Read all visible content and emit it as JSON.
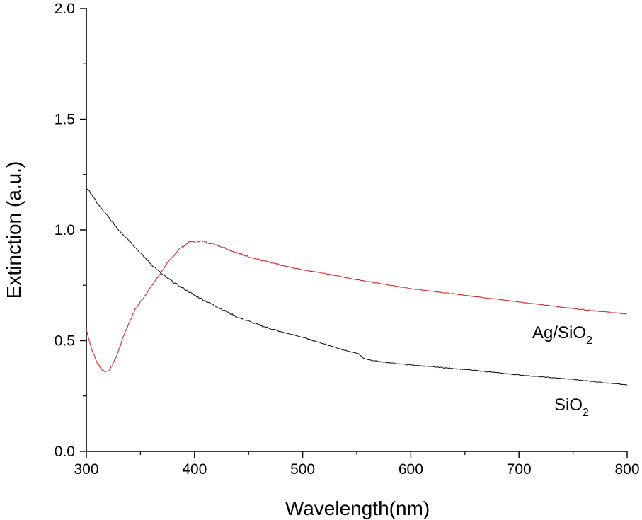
{
  "chart_data": {
    "type": "line",
    "xlabel": "Wavelength(nm)",
    "ylabel": "Extinction (a.u.)",
    "xlim": [
      300,
      800
    ],
    "ylim": [
      0.0,
      2.0
    ],
    "x_ticks": [
      300,
      400,
      500,
      600,
      700,
      800
    ],
    "x_tick_labels": [
      "300",
      "400",
      "500",
      "600",
      "700",
      "800"
    ],
    "y_ticks": [
      0.0,
      0.5,
      1.0,
      1.5,
      2.0
    ],
    "y_tick_labels": [
      "0.0",
      "0.5",
      "1.0",
      "1.5",
      "2.0"
    ],
    "grid": false,
    "series": [
      {
        "name": "Ag/SiO2",
        "label_main": "Ag/SiO",
        "label_sub": "2",
        "color": "#d42a2a",
        "points": [
          [
            300,
            0.55
          ],
          [
            305,
            0.46
          ],
          [
            310,
            0.4
          ],
          [
            315,
            0.365
          ],
          [
            318,
            0.36
          ],
          [
            322,
            0.37
          ],
          [
            328,
            0.43
          ],
          [
            335,
            0.53
          ],
          [
            345,
            0.64
          ],
          [
            355,
            0.71
          ],
          [
            365,
            0.78
          ],
          [
            375,
            0.85
          ],
          [
            385,
            0.91
          ],
          [
            395,
            0.945
          ],
          [
            405,
            0.95
          ],
          [
            415,
            0.94
          ],
          [
            425,
            0.925
          ],
          [
            440,
            0.895
          ],
          [
            460,
            0.865
          ],
          [
            480,
            0.84
          ],
          [
            500,
            0.82
          ],
          [
            525,
            0.8
          ],
          [
            550,
            0.775
          ],
          [
            575,
            0.755
          ],
          [
            600,
            0.735
          ],
          [
            650,
            0.705
          ],
          [
            700,
            0.675
          ],
          [
            750,
            0.645
          ],
          [
            800,
            0.62
          ]
        ]
      },
      {
        "name": "SiO2",
        "label_main": "SiO",
        "label_sub": "2",
        "color": "#1a1a1a",
        "points": [
          [
            300,
            1.19
          ],
          [
            305,
            1.16
          ],
          [
            310,
            1.12
          ],
          [
            315,
            1.09
          ],
          [
            320,
            1.06
          ],
          [
            330,
            1.0
          ],
          [
            340,
            0.95
          ],
          [
            350,
            0.895
          ],
          [
            360,
            0.845
          ],
          [
            370,
            0.8
          ],
          [
            380,
            0.765
          ],
          [
            390,
            0.735
          ],
          [
            400,
            0.705
          ],
          [
            420,
            0.655
          ],
          [
            440,
            0.605
          ],
          [
            460,
            0.57
          ],
          [
            480,
            0.54
          ],
          [
            500,
            0.515
          ],
          [
            520,
            0.485
          ],
          [
            540,
            0.455
          ],
          [
            552,
            0.44
          ],
          [
            556,
            0.42
          ],
          [
            565,
            0.41
          ],
          [
            580,
            0.4
          ],
          [
            600,
            0.39
          ],
          [
            650,
            0.37
          ],
          [
            700,
            0.345
          ],
          [
            750,
            0.325
          ],
          [
            800,
            0.3
          ]
        ]
      }
    ]
  }
}
